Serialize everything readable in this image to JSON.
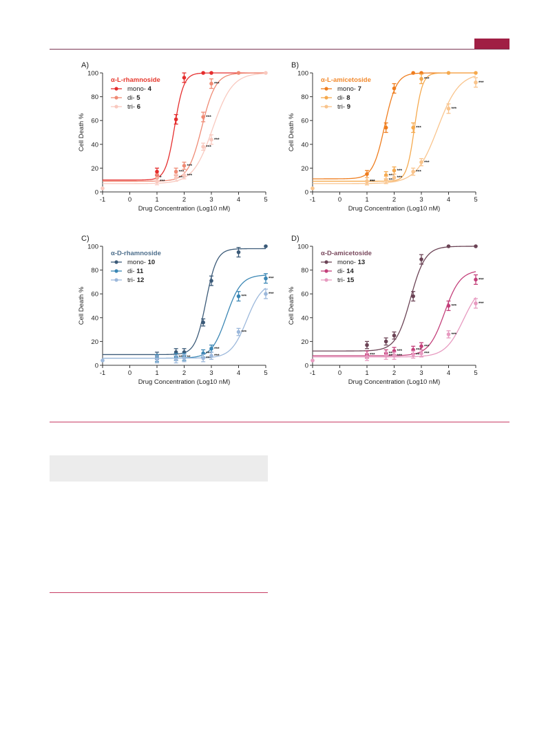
{
  "colors": {
    "rule": "#7a3552",
    "tab": "#a01e44",
    "section_rule": "#c73b63",
    "box": "#ececec"
  },
  "chart_data": [
    {
      "type": "line",
      "panel_label": "A)",
      "legend_title": "α-L-rhamnoside",
      "legend_title_color": "#e63a2f",
      "ylabel": "Cell Death %",
      "xlabel": "Drug Concentration (Log10 nM)",
      "xlim": [
        -1,
        5
      ],
      "ylim": [
        0,
        100
      ],
      "xticks": [
        -1,
        0,
        1,
        2,
        3,
        4,
        5
      ],
      "yticks": [
        0,
        20,
        40,
        60,
        80,
        100
      ],
      "series": [
        {
          "name": "mono-",
          "compound": "4",
          "color": "#e52d2d",
          "points": [
            {
              "x": 1,
              "y": 17,
              "sig": ""
            },
            {
              "x": 1.7,
              "y": 61,
              "sig": ""
            },
            {
              "x": 2,
              "y": 96,
              "sig": ""
            },
            {
              "x": 2.7,
              "y": 100,
              "sig": ""
            },
            {
              "x": 3,
              "y": 100,
              "sig": ""
            }
          ],
          "curve": {
            "bottom": 10,
            "top": 100,
            "ec50": 1.65,
            "hill": 2.6
          }
        },
        {
          "name": "di-",
          "compound": "5",
          "color": "#ef8a74",
          "points": [
            {
              "x": 1,
              "y": 12,
              "sig": "*"
            },
            {
              "x": 1.7,
              "y": 17,
              "sig": "***"
            },
            {
              "x": 2,
              "y": 22,
              "sig": "***"
            },
            {
              "x": 2.7,
              "y": 63,
              "sig": "***"
            },
            {
              "x": 3,
              "y": 91,
              "sig": "***"
            },
            {
              "x": 4,
              "y": 100,
              "sig": ""
            }
          ],
          "curve": {
            "bottom": 9,
            "top": 100,
            "ec50": 2.65,
            "hill": 1.7
          }
        },
        {
          "name": "tri-",
          "compound": "6",
          "color": "#f9c9bf",
          "points": [
            {
              "x": -1,
              "y": 3,
              "sig": ""
            },
            {
              "x": 1,
              "y": 9,
              "sig": "***"
            },
            {
              "x": 1.7,
              "y": 12,
              "sig": "***"
            },
            {
              "x": 2,
              "y": 14,
              "sig": "***"
            },
            {
              "x": 2.7,
              "y": 38,
              "sig": "***"
            },
            {
              "x": 3,
              "y": 44,
              "sig": "***"
            },
            {
              "x": 5,
              "y": 100,
              "sig": ""
            }
          ],
          "curve": {
            "bottom": 7,
            "top": 100,
            "ec50": 3.05,
            "hill": 1.2
          }
        }
      ]
    },
    {
      "type": "line",
      "panel_label": "B)",
      "legend_title": "α-L-amicetoside",
      "legend_title_color": "#f28a2e",
      "ylabel": "Cell Death %",
      "xlabel": "Drug Concentration (Log10 nM)",
      "xlim": [
        -1,
        5
      ],
      "ylim": [
        0,
        100
      ],
      "xticks": [
        -1,
        0,
        1,
        2,
        3,
        4,
        5
      ],
      "yticks": [
        0,
        20,
        40,
        60,
        80,
        100
      ],
      "series": [
        {
          "name": "mono-",
          "compound": "7",
          "color": "#ef7d1e",
          "points": [
            {
              "x": 1,
              "y": 15,
              "sig": ""
            },
            {
              "x": 1.7,
              "y": 54,
              "sig": ""
            },
            {
              "x": 2,
              "y": 87,
              "sig": ""
            },
            {
              "x": 2.7,
              "y": 100,
              "sig": ""
            },
            {
              "x": 3,
              "y": 100,
              "sig": ""
            }
          ],
          "curve": {
            "bottom": 11,
            "top": 100,
            "ec50": 1.65,
            "hill": 2.0
          }
        },
        {
          "name": "di-",
          "compound": "8",
          "color": "#f5a94d",
          "points": [
            {
              "x": 1,
              "y": 9,
              "sig": "***"
            },
            {
              "x": 1.7,
              "y": 14,
              "sig": "***"
            },
            {
              "x": 2,
              "y": 18,
              "sig": "***"
            },
            {
              "x": 2.7,
              "y": 54,
              "sig": "***"
            },
            {
              "x": 3,
              "y": 95,
              "sig": "***"
            },
            {
              "x": 4,
              "y": 100,
              "sig": ""
            },
            {
              "x": 5,
              "y": 100,
              "sig": ""
            }
          ],
          "curve": {
            "bottom": 9,
            "top": 100,
            "ec50": 2.75,
            "hill": 3.0
          }
        },
        {
          "name": "tri-",
          "compound": "9",
          "color": "#f9c48c",
          "points": [
            {
              "x": -1,
              "y": 3,
              "sig": ""
            },
            {
              "x": 1,
              "y": 9,
              "sig": "***"
            },
            {
              "x": 1.7,
              "y": 10,
              "sig": "***"
            },
            {
              "x": 2,
              "y": 12,
              "sig": "***"
            },
            {
              "x": 2.7,
              "y": 17,
              "sig": "***"
            },
            {
              "x": 3,
              "y": 25,
              "sig": "***"
            },
            {
              "x": 4,
              "y": 70,
              "sig": "***"
            },
            {
              "x": 5,
              "y": 92,
              "sig": "***"
            }
          ],
          "curve": {
            "bottom": 7,
            "top": 100,
            "ec50": 3.6,
            "hill": 1.1
          }
        }
      ]
    },
    {
      "type": "line",
      "panel_label": "C)",
      "legend_title": "α-D-rhamnoside",
      "legend_title_color": "#4e6f8c",
      "ylabel": "Cell Death %",
      "xlabel": "Drug Concentration (Log10 nM)",
      "xlim": [
        -1,
        5
      ],
      "ylim": [
        0,
        100
      ],
      "xticks": [
        -1,
        0,
        1,
        2,
        3,
        4,
        5
      ],
      "yticks": [
        0,
        20,
        40,
        60,
        80,
        100
      ],
      "series": [
        {
          "name": "mono-",
          "compound": "10",
          "color": "#3b5a78",
          "points": [
            {
              "x": 1,
              "y": 8,
              "sig": ""
            },
            {
              "x": 1.7,
              "y": 11,
              "sig": ""
            },
            {
              "x": 2,
              "y": 11,
              "sig": ""
            },
            {
              "x": 2.7,
              "y": 36,
              "sig": ""
            },
            {
              "x": 3,
              "y": 71,
              "sig": ""
            },
            {
              "x": 4,
              "y": 95,
              "sig": ""
            },
            {
              "x": 5,
              "y": 100,
              "sig": ""
            }
          ],
          "curve": {
            "bottom": 9,
            "top": 98,
            "ec50": 2.8,
            "hill": 2.2
          }
        },
        {
          "name": "di-",
          "compound": "11",
          "color": "#3a86b4",
          "points": [
            {
              "x": 1,
              "y": 6,
              "sig": ""
            },
            {
              "x": 1.7,
              "y": 7,
              "sig": "**"
            },
            {
              "x": 2,
              "y": 7,
              "sig": "**"
            },
            {
              "x": 2.7,
              "y": 10,
              "sig": "***"
            },
            {
              "x": 3,
              "y": 14,
              "sig": "***"
            },
            {
              "x": 4,
              "y": 58,
              "sig": "***"
            },
            {
              "x": 5,
              "y": 73,
              "sig": "***"
            }
          ],
          "curve": {
            "bottom": 6,
            "top": 76,
            "ec50": 3.55,
            "hill": 1.6
          }
        },
        {
          "name": "tri-",
          "compound": "12",
          "color": "#9cb8db",
          "points": [
            {
              "x": -1,
              "y": 4,
              "sig": ""
            },
            {
              "x": 1,
              "y": 5,
              "sig": ""
            },
            {
              "x": 1.7,
              "y": 5,
              "sig": ""
            },
            {
              "x": 2,
              "y": 6,
              "sig": ""
            },
            {
              "x": 2.7,
              "y": 6,
              "sig": "***"
            },
            {
              "x": 3,
              "y": 8,
              "sig": "***"
            },
            {
              "x": 4,
              "y": 28,
              "sig": "***"
            },
            {
              "x": 5,
              "y": 60,
              "sig": "***"
            }
          ],
          "curve": {
            "bottom": 6,
            "top": 70,
            "ec50": 4.3,
            "hill": 1.5
          }
        }
      ]
    },
    {
      "type": "line",
      "panel_label": "D)",
      "legend_title": "α-D-amicetoside",
      "legend_title_color": "#7a4a5e",
      "ylabel": "Cell Death %",
      "xlabel": "Drug Concentration (Log10 nM)",
      "xlim": [
        -1,
        5
      ],
      "ylim": [
        0,
        100
      ],
      "xticks": [
        -1,
        0,
        1,
        2,
        3,
        4,
        5
      ],
      "yticks": [
        0,
        20,
        40,
        60,
        80,
        100
      ],
      "series": [
        {
          "name": "mono-",
          "compound": "13",
          "color": "#6b4355",
          "points": [
            {
              "x": 1,
              "y": 17,
              "sig": ""
            },
            {
              "x": 1.7,
              "y": 20,
              "sig": ""
            },
            {
              "x": 2,
              "y": 25,
              "sig": ""
            },
            {
              "x": 2.7,
              "y": 58,
              "sig": ""
            },
            {
              "x": 3,
              "y": 89,
              "sig": ""
            },
            {
              "x": 4,
              "y": 100,
              "sig": ""
            },
            {
              "x": 5,
              "y": 100,
              "sig": ""
            }
          ],
          "curve": {
            "bottom": 12,
            "top": 100,
            "ec50": 2.6,
            "hill": 1.6
          }
        },
        {
          "name": "di-",
          "compound": "14",
          "color": "#c33f7a",
          "points": [
            {
              "x": 1,
              "y": 9,
              "sig": "***"
            },
            {
              "x": 1.7,
              "y": 10,
              "sig": "***"
            },
            {
              "x": 2,
              "y": 12,
              "sig": "***"
            },
            {
              "x": 2.7,
              "y": 13,
              "sig": "***"
            },
            {
              "x": 3,
              "y": 16,
              "sig": "***"
            },
            {
              "x": 4,
              "y": 50,
              "sig": "***"
            },
            {
              "x": 5,
              "y": 72,
              "sig": "***"
            }
          ],
          "curve": {
            "bottom": 8,
            "top": 80,
            "ec50": 3.85,
            "hill": 1.5
          }
        },
        {
          "name": "tri-",
          "compound": "15",
          "color": "#e79ac0",
          "points": [
            {
              "x": -1,
              "y": 4,
              "sig": ""
            },
            {
              "x": 1,
              "y": 7,
              "sig": ""
            },
            {
              "x": 1.7,
              "y": 8,
              "sig": "***"
            },
            {
              "x": 2,
              "y": 8,
              "sig": "***"
            },
            {
              "x": 2.7,
              "y": 9,
              "sig": "***"
            },
            {
              "x": 3,
              "y": 10,
              "sig": "***"
            },
            {
              "x": 4,
              "y": 26,
              "sig": "***"
            },
            {
              "x": 5,
              "y": 52,
              "sig": "***"
            }
          ],
          "curve": {
            "bottom": 7,
            "top": 70,
            "ec50": 4.55,
            "hill": 1.3
          }
        }
      ]
    }
  ]
}
